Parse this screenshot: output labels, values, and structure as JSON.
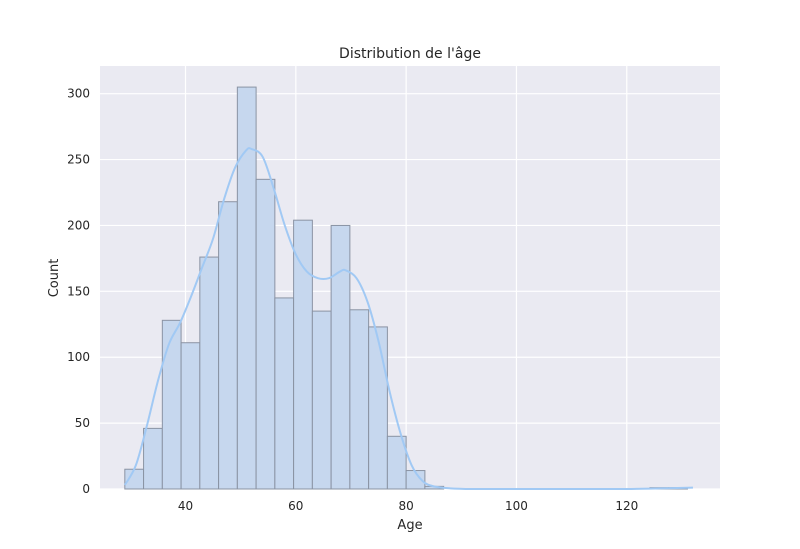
{
  "chart_data": {
    "type": "bar",
    "title": "Distribution de l'âge",
    "xlabel": "Age",
    "ylabel": "Count",
    "xlim": [
      24.5,
      136.9
    ],
    "ylim": [
      0,
      321
    ],
    "xticks": [
      40,
      60,
      80,
      100,
      120
    ],
    "yticks": [
      0,
      50,
      100,
      150,
      200,
      250,
      300
    ],
    "grid": true,
    "bin_start": 29.0,
    "bin_width": 3.4,
    "counts": [
      15,
      46,
      128,
      111,
      176,
      218,
      305,
      235,
      145,
      204,
      135,
      200,
      136,
      123,
      40,
      14,
      2,
      0,
      0,
      0,
      0,
      0,
      0,
      0,
      0,
      0,
      0,
      0,
      1,
      1
    ],
    "kde": {
      "x": [
        29,
        31,
        33,
        35,
        37,
        39,
        41,
        43,
        45,
        47,
        49,
        51,
        52,
        54,
        56,
        58,
        60,
        62,
        64,
        66,
        68,
        69,
        71,
        73,
        75,
        77,
        79,
        81,
        83,
        85,
        88,
        92,
        100,
        110,
        120,
        126,
        132
      ],
      "y": [
        3,
        18,
        48,
        82,
        110,
        126,
        146,
        168,
        190,
        220,
        244,
        257,
        258,
        252,
        228,
        200,
        178,
        165,
        160,
        160,
        165,
        166,
        160,
        142,
        112,
        74,
        42,
        18,
        6,
        2,
        0.5,
        0,
        0,
        0,
        0,
        0.5,
        1
      ]
    },
    "colors": {
      "bar_fill": "#c6d7ee",
      "bar_edge": "#8a93a3",
      "kde_line": "#a1c9f4",
      "plot_bg": "#eaeaf2",
      "grid": "#ffffff"
    }
  }
}
